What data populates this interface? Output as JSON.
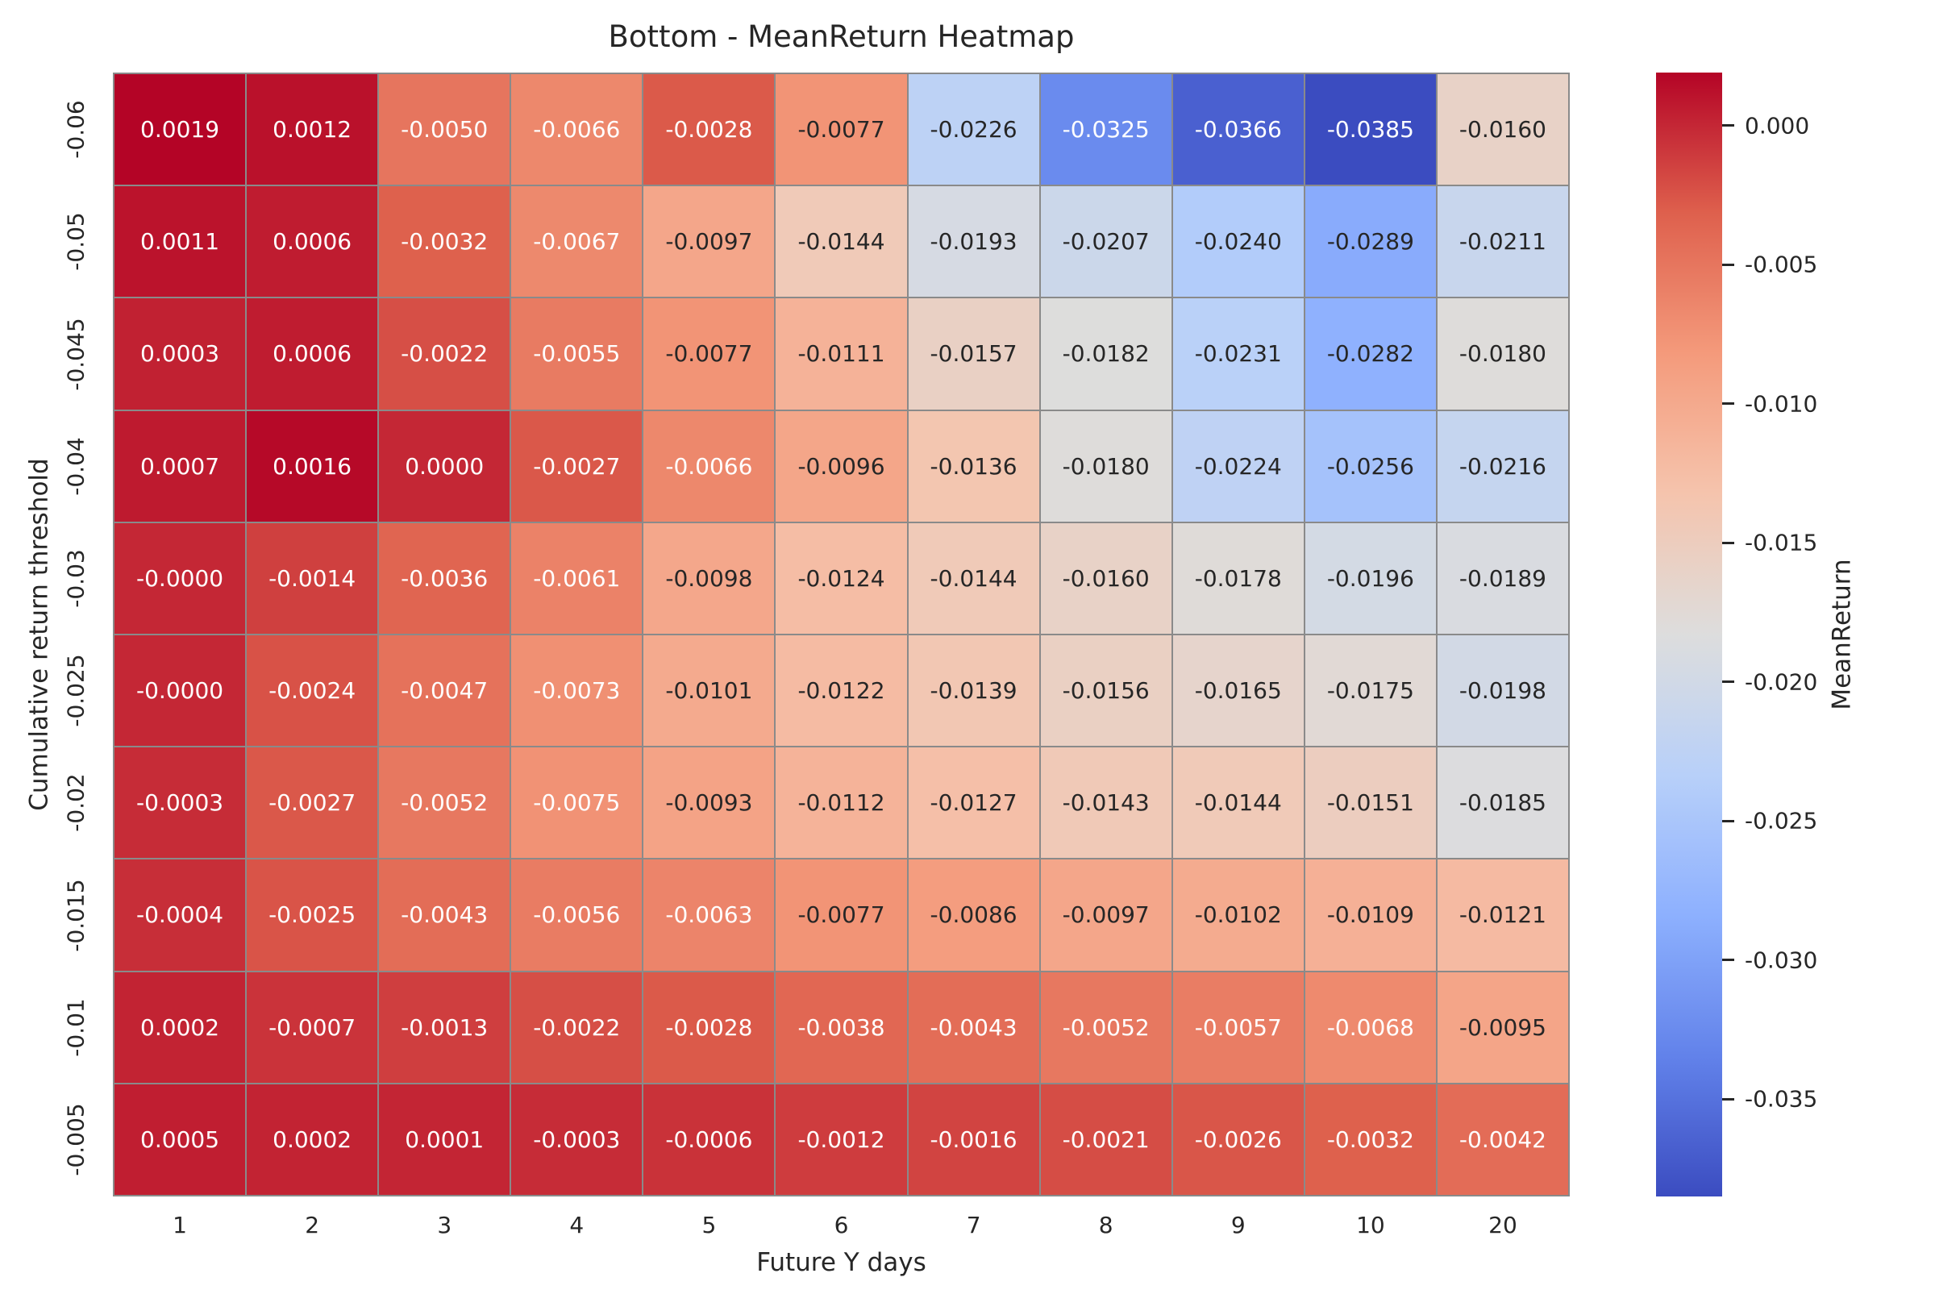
{
  "colors": {
    "text": "#262626",
    "annot_dark": "#262626",
    "annot_light": "#ffffff",
    "gridline": "#8a8a8a",
    "background": "#ffffff"
  },
  "chart_data": {
    "type": "heatmap",
    "title": "Bottom - MeanReturn Heatmap",
    "xlabel": "Future Y days",
    "ylabel": "Cumulative return threshold",
    "colorbar_label": "MeanReturn",
    "colorbar_ticks": [
      "0.000",
      "-0.005",
      "-0.010",
      "-0.015",
      "-0.020",
      "-0.025",
      "-0.030",
      "-0.035"
    ],
    "x_categories": [
      "1",
      "2",
      "3",
      "4",
      "5",
      "6",
      "7",
      "8",
      "9",
      "10",
      "20"
    ],
    "y_categories": [
      "-0.06",
      "-0.05",
      "-0.045",
      "-0.04",
      "-0.03",
      "-0.025",
      "-0.02",
      "-0.015",
      "-0.01",
      "-0.005"
    ],
    "values": [
      [
        "0.0019",
        "0.0012",
        "-0.0050",
        "-0.0066",
        "-0.0028",
        "-0.0077",
        "-0.0226",
        "-0.0325",
        "-0.0366",
        "-0.0385",
        "-0.0160"
      ],
      [
        "0.0011",
        "0.0006",
        "-0.0032",
        "-0.0067",
        "-0.0097",
        "-0.0144",
        "-0.0193",
        "-0.0207",
        "-0.0240",
        "-0.0289",
        "-0.0211"
      ],
      [
        "0.0003",
        "0.0006",
        "-0.0022",
        "-0.0055",
        "-0.0077",
        "-0.0111",
        "-0.0157",
        "-0.0182",
        "-0.0231",
        "-0.0282",
        "-0.0180"
      ],
      [
        "0.0007",
        "0.0016",
        "0.0000",
        "-0.0027",
        "-0.0066",
        "-0.0096",
        "-0.0136",
        "-0.0180",
        "-0.0224",
        "-0.0256",
        "-0.0216"
      ],
      [
        "-0.0000",
        "-0.0014",
        "-0.0036",
        "-0.0061",
        "-0.0098",
        "-0.0124",
        "-0.0144",
        "-0.0160",
        "-0.0178",
        "-0.0196",
        "-0.0189"
      ],
      [
        "-0.0000",
        "-0.0024",
        "-0.0047",
        "-0.0073",
        "-0.0101",
        "-0.0122",
        "-0.0139",
        "-0.0156",
        "-0.0165",
        "-0.0175",
        "-0.0198"
      ],
      [
        "-0.0003",
        "-0.0027",
        "-0.0052",
        "-0.0075",
        "-0.0093",
        "-0.0112",
        "-0.0127",
        "-0.0143",
        "-0.0144",
        "-0.0151",
        "-0.0185"
      ],
      [
        "-0.0004",
        "-0.0025",
        "-0.0043",
        "-0.0056",
        "-0.0063",
        "-0.0077",
        "-0.0086",
        "-0.0097",
        "-0.0102",
        "-0.0109",
        "-0.0121"
      ],
      [
        "0.0002",
        "-0.0007",
        "-0.0013",
        "-0.0022",
        "-0.0028",
        "-0.0038",
        "-0.0043",
        "-0.0052",
        "-0.0057",
        "-0.0068",
        "-0.0095"
      ],
      [
        "0.0005",
        "0.0002",
        "0.0001",
        "-0.0003",
        "-0.0006",
        "-0.0012",
        "-0.0016",
        "-0.0021",
        "-0.0026",
        "-0.0032",
        "-0.0042"
      ]
    ],
    "vmin": -0.0385,
    "vmax": 0.0019,
    "colormap": "coolwarm",
    "colormap_stops": [
      [
        59,
        76,
        192
      ],
      [
        98,
        130,
        234
      ],
      [
        141,
        176,
        254
      ],
      [
        184,
        208,
        249
      ],
      [
        221,
        221,
        221
      ],
      [
        245,
        196,
        173
      ],
      [
        244,
        154,
        123
      ],
      [
        222,
        96,
        77
      ],
      [
        180,
        4,
        38
      ]
    ],
    "legend_position": "right",
    "grid": false
  }
}
